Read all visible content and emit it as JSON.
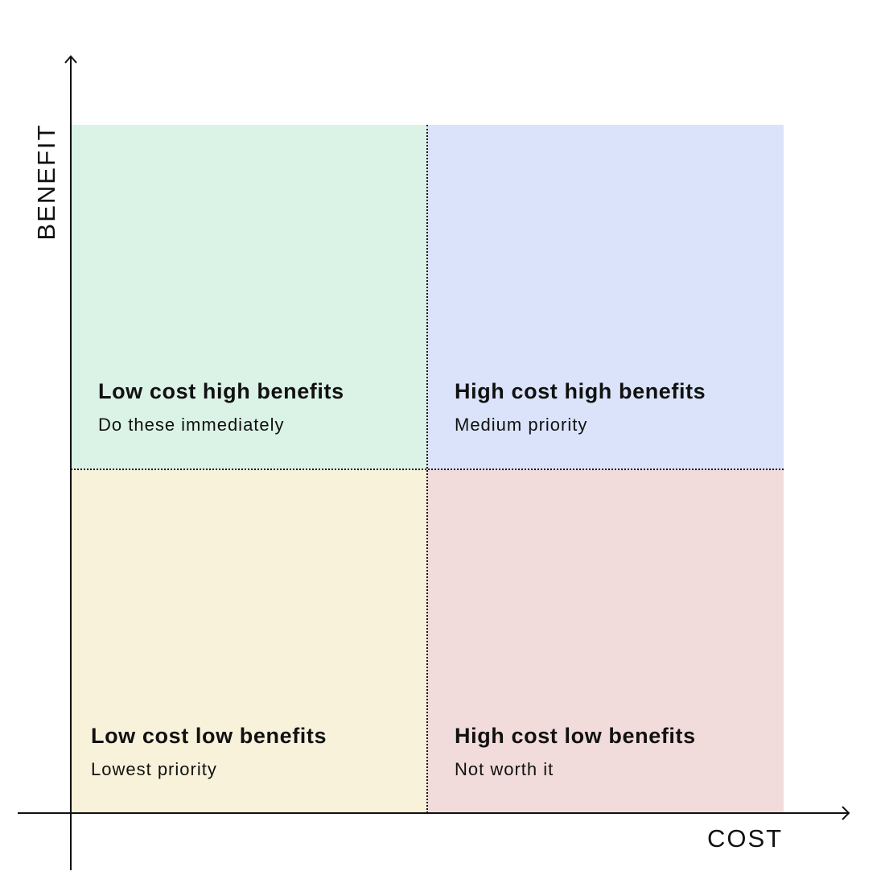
{
  "axes": {
    "x_label": "COST",
    "y_label": "BENEFIT"
  },
  "quadrants": {
    "top_left": {
      "title": "Low cost high benefits",
      "subtitle": "Do these immediately",
      "color": "#dbf2e6"
    },
    "top_right": {
      "title": "High cost high benefits",
      "subtitle": "Medium priority",
      "color": "#dae3fa"
    },
    "bottom_left": {
      "title": "Low cost low benefits",
      "subtitle": "Lowest priority",
      "color": "#f9f2db"
    },
    "bottom_right": {
      "title": "High cost low benefits",
      "subtitle": "Not worth it",
      "color": "#f2dcdb"
    }
  },
  "colors": {
    "axis": "#111111",
    "text": "#111111",
    "background": "#ffffff"
  }
}
